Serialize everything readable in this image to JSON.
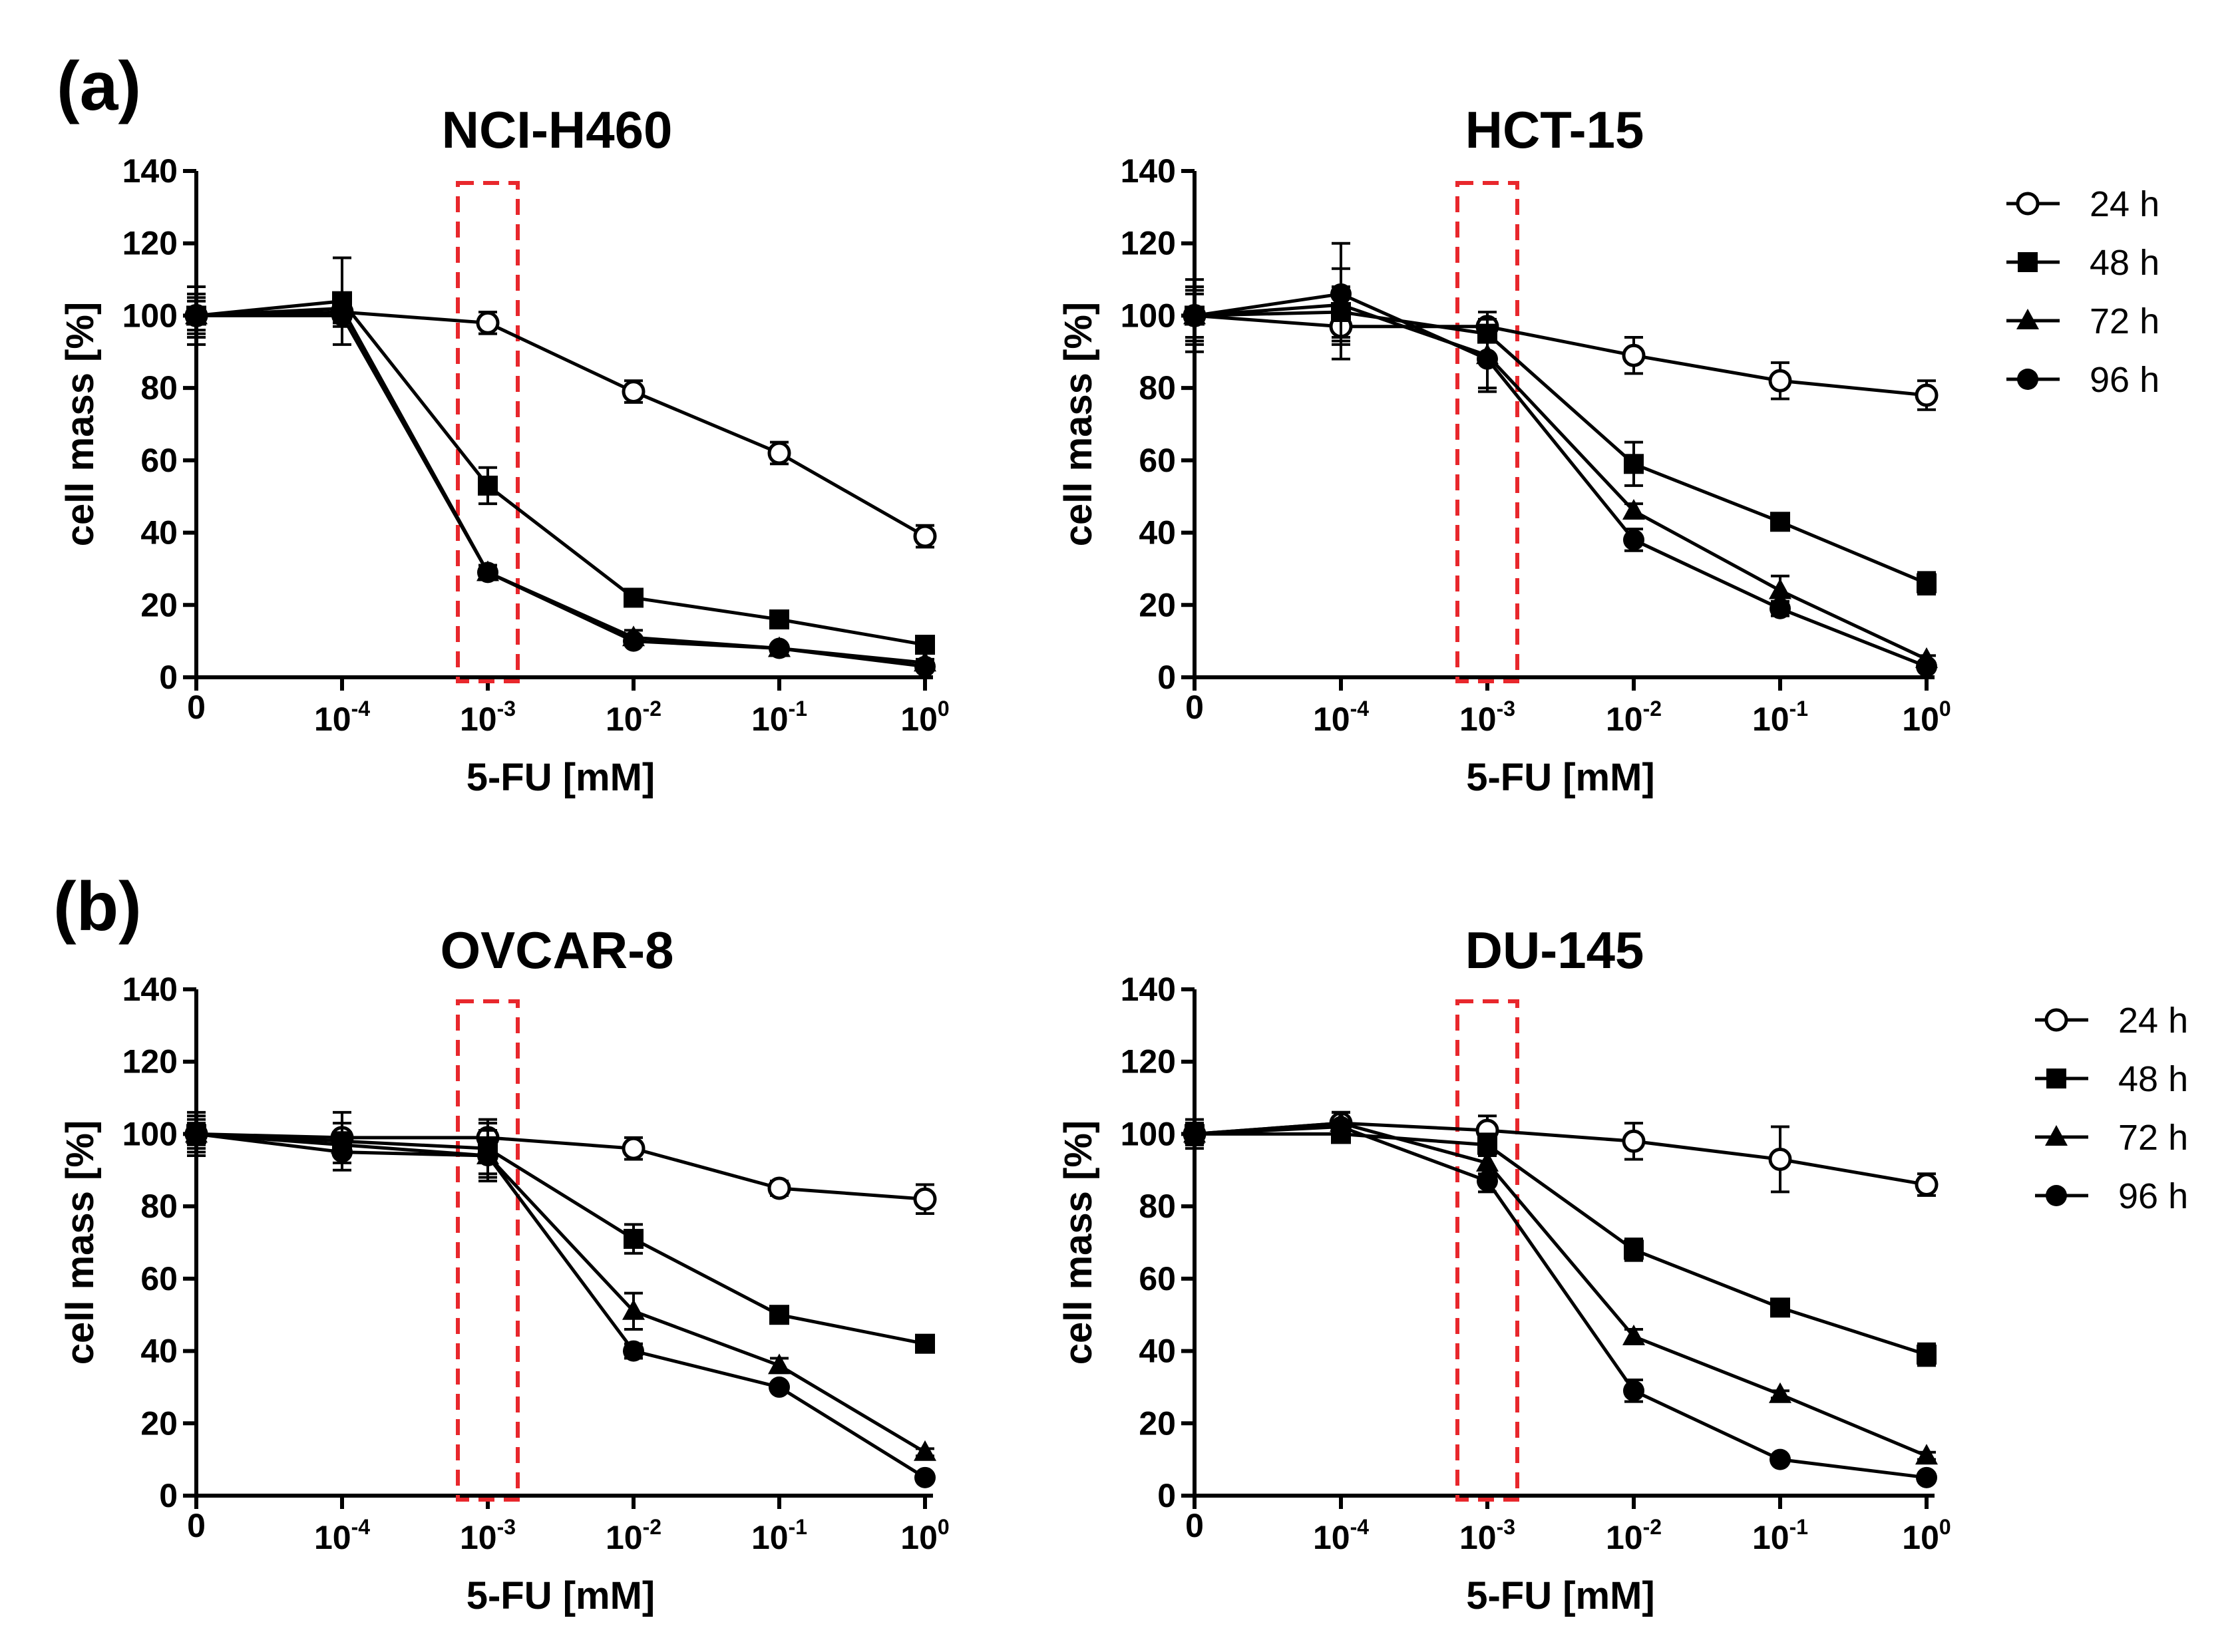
{
  "panel_labels": [
    "(a)",
    "(b)"
  ],
  "series_meta": [
    {
      "name": "24 h",
      "marker": "open-circle"
    },
    {
      "name": "48 h",
      "marker": "filled-square"
    },
    {
      "name": "72 h",
      "marker": "filled-triangle"
    },
    {
      "name": "96 h",
      "marker": "filled-circle"
    }
  ],
  "chart_data": [
    {
      "type": "line",
      "title": "NCI-H460",
      "xlabel": "5-FU [mM]",
      "ylabel": "cell mass [%]",
      "ylim": [
        0,
        140
      ],
      "yticks": [
        "0",
        "20",
        "40",
        "60",
        "80",
        "100",
        "120",
        "140"
      ],
      "categories": [
        {
          "base": "0",
          "exp": ""
        },
        {
          "base": "10",
          "exp": "-4"
        },
        {
          "base": "10",
          "exp": "-3"
        },
        {
          "base": "10",
          "exp": "-2"
        },
        {
          "base": "10",
          "exp": "-1"
        },
        {
          "base": "10",
          "exp": "0"
        }
      ],
      "highlight_category": 2,
      "series": [
        {
          "name": "24 h",
          "values": [
            100,
            101,
            98,
            79,
            62,
            39
          ],
          "errors": [
            5,
            3,
            3,
            3,
            3,
            3
          ]
        },
        {
          "name": "48 h",
          "values": [
            100,
            104,
            53,
            22,
            16,
            9
          ],
          "errors": [
            8,
            12,
            5,
            2,
            2,
            2
          ]
        },
        {
          "name": "72 h",
          "values": [
            100,
            102,
            29,
            11,
            8,
            4
          ],
          "errors": [
            6,
            4,
            2,
            2,
            1,
            1
          ]
        },
        {
          "name": "96 h",
          "values": [
            100,
            100,
            29,
            10,
            8,
            3
          ],
          "errors": [
            4,
            3,
            2,
            1,
            1,
            1
          ]
        }
      ]
    },
    {
      "type": "line",
      "title": "HCT-15",
      "xlabel": "5-FU [mM]",
      "ylabel": "cell mass [%]",
      "ylim": [
        0,
        140
      ],
      "yticks": [
        "0",
        "20",
        "40",
        "60",
        "80",
        "100",
        "120",
        "140"
      ],
      "categories": [
        {
          "base": "0",
          "exp": ""
        },
        {
          "base": "10",
          "exp": "-4"
        },
        {
          "base": "10",
          "exp": "-3"
        },
        {
          "base": "10",
          "exp": "-2"
        },
        {
          "base": "10",
          "exp": "-1"
        },
        {
          "base": "10",
          "exp": "0"
        }
      ],
      "highlight_category": 2,
      "series": [
        {
          "name": "24 h",
          "values": [
            100,
            97,
            97,
            89,
            82,
            78
          ],
          "errors": [
            10,
            9,
            4,
            5,
            5,
            4
          ]
        },
        {
          "name": "48 h",
          "values": [
            100,
            101,
            95,
            59,
            43,
            26
          ],
          "errors": [
            7,
            7,
            6,
            6,
            2,
            3
          ]
        },
        {
          "name": "72 h",
          "values": [
            100,
            103,
            89,
            46,
            24,
            5
          ],
          "errors": [
            8,
            10,
            10,
            2,
            4,
            1
          ]
        },
        {
          "name": "96 h",
          "values": [
            100,
            106,
            88,
            38,
            19,
            3
          ],
          "errors": [
            6,
            14,
            8,
            3,
            2,
            1
          ]
        }
      ]
    },
    {
      "type": "line",
      "title": "OVCAR-8",
      "xlabel": "5-FU [mM]",
      "ylabel": "cell mass [%]",
      "ylim": [
        0,
        140
      ],
      "yticks": [
        "0",
        "20",
        "40",
        "60",
        "80",
        "100",
        "120",
        "140"
      ],
      "categories": [
        {
          "base": "0",
          "exp": ""
        },
        {
          "base": "10",
          "exp": "-4"
        },
        {
          "base": "10",
          "exp": "-3"
        },
        {
          "base": "10",
          "exp": "-2"
        },
        {
          "base": "10",
          "exp": "-1"
        },
        {
          "base": "10",
          "exp": "0"
        }
      ],
      "highlight_category": 2,
      "series": [
        {
          "name": "24 h",
          "values": [
            100,
            99,
            99,
            96,
            85,
            82
          ],
          "errors": [
            5,
            4,
            4,
            3,
            2,
            4
          ]
        },
        {
          "name": "48 h",
          "values": [
            100,
            98,
            96,
            71,
            50,
            42
          ],
          "errors": [
            6,
            8,
            8,
            4,
            2,
            2
          ]
        },
        {
          "name": "72 h",
          "values": [
            100,
            97,
            94,
            51,
            36,
            12
          ],
          "errors": [
            4,
            3,
            5,
            5,
            2,
            1
          ]
        },
        {
          "name": "96 h",
          "values": [
            100,
            95,
            94,
            40,
            30,
            5
          ],
          "errors": [
            3,
            3,
            7,
            2,
            1,
            1
          ]
        }
      ]
    },
    {
      "type": "line",
      "title": "DU-145",
      "xlabel": "5-FU [mM]",
      "ylabel": "cell mass [%]",
      "ylim": [
        0,
        140
      ],
      "yticks": [
        "0",
        "20",
        "40",
        "60",
        "80",
        "100",
        "120",
        "140"
      ],
      "categories": [
        {
          "base": "0",
          "exp": ""
        },
        {
          "base": "10",
          "exp": "-4"
        },
        {
          "base": "10",
          "exp": "-3"
        },
        {
          "base": "10",
          "exp": "-2"
        },
        {
          "base": "10",
          "exp": "-1"
        },
        {
          "base": "10",
          "exp": "0"
        }
      ],
      "highlight_category": 2,
      "series": [
        {
          "name": "24 h",
          "values": [
            100,
            103,
            101,
            98,
            93,
            86
          ],
          "errors": [
            4,
            3,
            4,
            5,
            9,
            3
          ]
        },
        {
          "name": "48 h",
          "values": [
            100,
            100,
            97,
            68,
            52,
            39
          ],
          "errors": [
            3,
            2,
            3,
            3,
            2,
            3
          ]
        },
        {
          "name": "72 h",
          "values": [
            100,
            103,
            92,
            44,
            28,
            11
          ],
          "errors": [
            3,
            3,
            3,
            2,
            1,
            1
          ]
        },
        {
          "name": "96 h",
          "values": [
            100,
            102,
            87,
            29,
            10,
            5
          ],
          "errors": [
            3,
            4,
            3,
            3,
            1,
            1
          ]
        }
      ]
    }
  ]
}
